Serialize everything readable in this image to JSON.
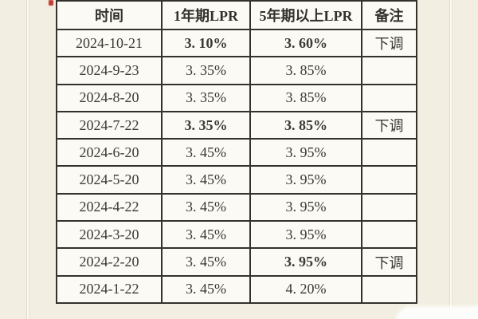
{
  "page": {
    "background_color": "#f2efe2",
    "accent_red": "#c5342c",
    "border_color": "#34322c",
    "cell_background": "#fbfaf4"
  },
  "table": {
    "headers": [
      {
        "label": "时间"
      },
      {
        "label": "1年期LPR"
      },
      {
        "label": "5年期以上LPR"
      },
      {
        "label": "备注"
      }
    ],
    "rows": [
      {
        "date": "2024-10-21",
        "lpr1": "3. 10%",
        "lpr1_red": true,
        "lpr5": "3. 60%",
        "lpr5_red": true,
        "note": "下调"
      },
      {
        "date": "2024-9-23",
        "lpr1": "3. 35%",
        "lpr1_red": false,
        "lpr5": "3. 85%",
        "lpr5_red": false,
        "note": ""
      },
      {
        "date": "2024-8-20",
        "lpr1": "3. 35%",
        "lpr1_red": false,
        "lpr5": "3. 85%",
        "lpr5_red": false,
        "note": ""
      },
      {
        "date": "2024-7-22",
        "lpr1": "3. 35%",
        "lpr1_red": true,
        "lpr5": "3. 85%",
        "lpr5_red": true,
        "note": "下调"
      },
      {
        "date": "2024-6-20",
        "lpr1": "3. 45%",
        "lpr1_red": false,
        "lpr5": "3. 95%",
        "lpr5_red": false,
        "note": ""
      },
      {
        "date": "2024-5-20",
        "lpr1": "3. 45%",
        "lpr1_red": false,
        "lpr5": "3. 95%",
        "lpr5_red": false,
        "note": ""
      },
      {
        "date": "2024-4-22",
        "lpr1": "3. 45%",
        "lpr1_red": false,
        "lpr5": "3. 95%",
        "lpr5_red": false,
        "note": ""
      },
      {
        "date": "2024-3-20",
        "lpr1": "3. 45%",
        "lpr1_red": false,
        "lpr5": "3. 95%",
        "lpr5_red": false,
        "note": ""
      },
      {
        "date": "2024-2-20",
        "lpr1": "3. 45%",
        "lpr1_red": false,
        "lpr5": "3. 95%",
        "lpr5_red": true,
        "note": "下调"
      },
      {
        "date": "2024-1-22",
        "lpr1": "3. 45%",
        "lpr1_red": false,
        "lpr5": "4. 20%",
        "lpr5_red": false,
        "note": ""
      }
    ]
  }
}
